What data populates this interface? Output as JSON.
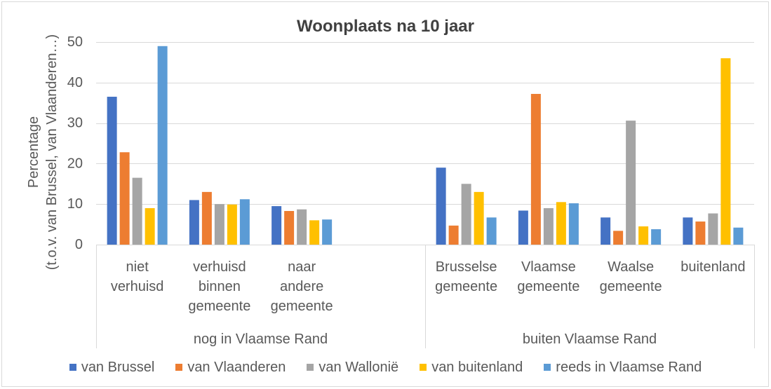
{
  "chart_data": {
    "type": "bar",
    "orientation": "vertical",
    "title": "Woonplaats na 10 jaar",
    "ylabel": [
      "Percentage",
      "(t.o.v. van Brussel, van Vlaanderen…)"
    ],
    "ylim": [
      0,
      50
    ],
    "yticks": [
      0,
      10,
      20,
      30,
      40,
      50
    ],
    "grid": true,
    "legend": "bottom",
    "category_groups": [
      {
        "label": "nog in Vlaamse Rand",
        "categories": [
          "niet verhuisd",
          "verhuisd binnen gemeente",
          "naar andere gemeente",
          null
        ]
      },
      {
        "label": "buiten Vlaamse Rand",
        "categories": [
          "Brusselse gemeente",
          "Vlaamse gemeente",
          "Waalse gemeente",
          "buitenland"
        ]
      }
    ],
    "series": [
      {
        "name": "van Brussel",
        "color": "#4472C4",
        "values": [
          36.5,
          11.0,
          9.5,
          null,
          19.0,
          8.4,
          6.7,
          6.7
        ]
      },
      {
        "name": "van Vlaanderen",
        "color": "#ED7D31",
        "values": [
          22.8,
          13.0,
          8.3,
          null,
          4.7,
          37.2,
          3.4,
          5.7
        ]
      },
      {
        "name": "van Wallonië",
        "color": "#A5A5A5",
        "values": [
          16.5,
          10.0,
          8.7,
          null,
          15.0,
          9.0,
          30.6,
          7.7
        ]
      },
      {
        "name": "van buitenland",
        "color": "#FFC000",
        "values": [
          9.0,
          9.9,
          6.0,
          null,
          13.0,
          10.5,
          4.5,
          46.0
        ]
      },
      {
        "name": "reeds in Vlaamse Rand",
        "color": "#5B9BD5",
        "values": [
          49.0,
          11.2,
          6.2,
          null,
          6.7,
          10.2,
          3.8,
          4.2
        ]
      }
    ]
  }
}
